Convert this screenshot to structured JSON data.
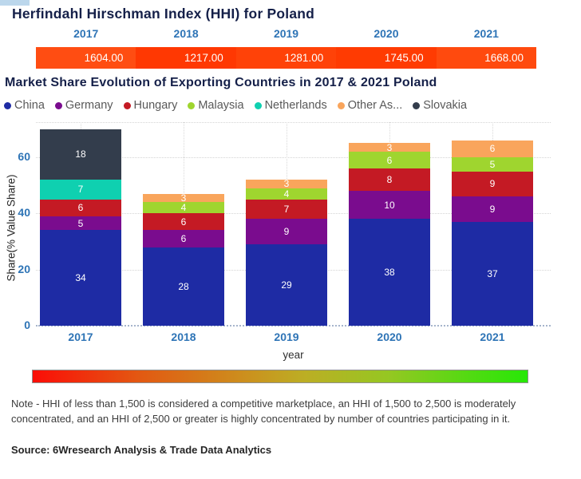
{
  "hhi_card": {
    "title": "Herfindahl Hirschman Index (HHI) for Poland",
    "band_segment_colors": [
      "#ff4d12",
      "#ff3802",
      "#ff4208",
      "#ff3b02",
      "#ff4a0e"
    ]
  },
  "market_card": {
    "title": "Market Share Evolution of Exporting Countries in 2017 & 2021 Poland"
  },
  "axis": {
    "ylabel": "Share(% Value Share)",
    "xlabel": "year",
    "yticks": [
      0,
      20,
      40,
      60
    ]
  },
  "colors": {
    "accent_blue": "#2e74b6",
    "title_navy": "#152049",
    "band_text": "#ffffff"
  },
  "chart_data": [
    {
      "type": "table",
      "title": "Herfindahl Hirschman Index (HHI) for Poland",
      "columns": [
        "2017",
        "2018",
        "2019",
        "2020",
        "2021"
      ],
      "values": [
        "1604.00",
        "1217.00",
        "1281.00",
        "1745.00",
        "1668.00"
      ]
    },
    {
      "type": "bar",
      "stacked": true,
      "title": "Market Share Evolution of Exporting Countries in 2017 & 2021 Poland",
      "categories": [
        "2017",
        "2018",
        "2019",
        "2020",
        "2021"
      ],
      "series": [
        {
          "name": "China",
          "color": "#1e2ba4",
          "values": [
            34,
            28,
            29,
            38,
            37
          ]
        },
        {
          "name": "Germany",
          "color": "#7a0c8e",
          "values": [
            5,
            6,
            9,
            10,
            9
          ]
        },
        {
          "name": "Hungary",
          "color": "#c41a24",
          "values": [
            6,
            6,
            7,
            8,
            9
          ]
        },
        {
          "name": "Malaysia",
          "color": "#9fd52f",
          "values": [
            0,
            4,
            4,
            6,
            5
          ]
        },
        {
          "name": "Netherlands",
          "color": "#0fd0b0",
          "values": [
            7,
            0,
            0,
            0,
            0
          ]
        },
        {
          "name": "Other As...",
          "color": "#f9a55c",
          "values": [
            0,
            3,
            3,
            3,
            6
          ]
        },
        {
          "name": "Slovakia",
          "color": "#333d4c",
          "values": [
            18,
            0,
            0,
            0,
            0
          ]
        }
      ],
      "xlabel": "year",
      "ylabel": "Share(% Value Share)",
      "ylim": [
        0,
        72.5
      ],
      "yticks": [
        0,
        20,
        40,
        60
      ],
      "grid": "dotted",
      "legend_position": "top"
    }
  ],
  "gradient_legend": {
    "left_color": "#fb0d07",
    "right_color": "#27e807",
    "description": "red-to-green HHI scale"
  },
  "note": "Note - HHI of less than 1,500 is considered a competitive marketplace, an HHI of 1,500 to 2,500 is moderately concentrated, and an HHI of 2,500 or greater is highly concentrated by number of countries participating in it.",
  "source": "Source: 6Wresearch Analysis & Trade Data Analytics"
}
